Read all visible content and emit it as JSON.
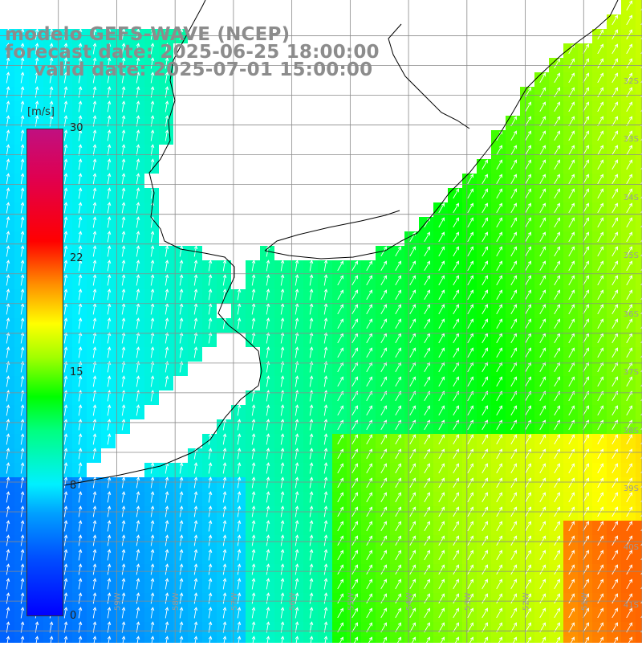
{
  "title": {
    "line1": "modelo GEFS-WAVE (NCEP)",
    "line2": "forecast date: 2025-06-25 18:00:00",
    "line3": "valid date: 2025-07-01 15:00:00"
  },
  "colorbar": {
    "unit": "[m/s]",
    "ticks": [
      "30",
      "22",
      "15",
      "8",
      "0"
    ],
    "tick_values": [
      30,
      22,
      15,
      8,
      0
    ],
    "range": [
      0,
      30
    ],
    "colors": [
      "#0000ff",
      "#00a0ff",
      "#00f0ff",
      "#00ff00",
      "#ffff00",
      "#ff0000",
      "#c01080"
    ]
  },
  "lat_labels": [
    "32S",
    "33S",
    "34S",
    "35S",
    "36S",
    "37S",
    "38S",
    "39S",
    "40S",
    "41S"
  ],
  "lon_labels": [
    "60W",
    "59W",
    "58W",
    "57W",
    "56W",
    "55W",
    "54W",
    "53W",
    "52W",
    "51W"
  ],
  "map": {
    "lon_range": [
      -61,
      -50
    ],
    "lat_range": [
      -41.2,
      -30.4
    ],
    "land_color": "#ffffff",
    "grid_color": "#8a8a8a",
    "coast_color": "#000000",
    "arrow_color": "#ffffff"
  }
}
